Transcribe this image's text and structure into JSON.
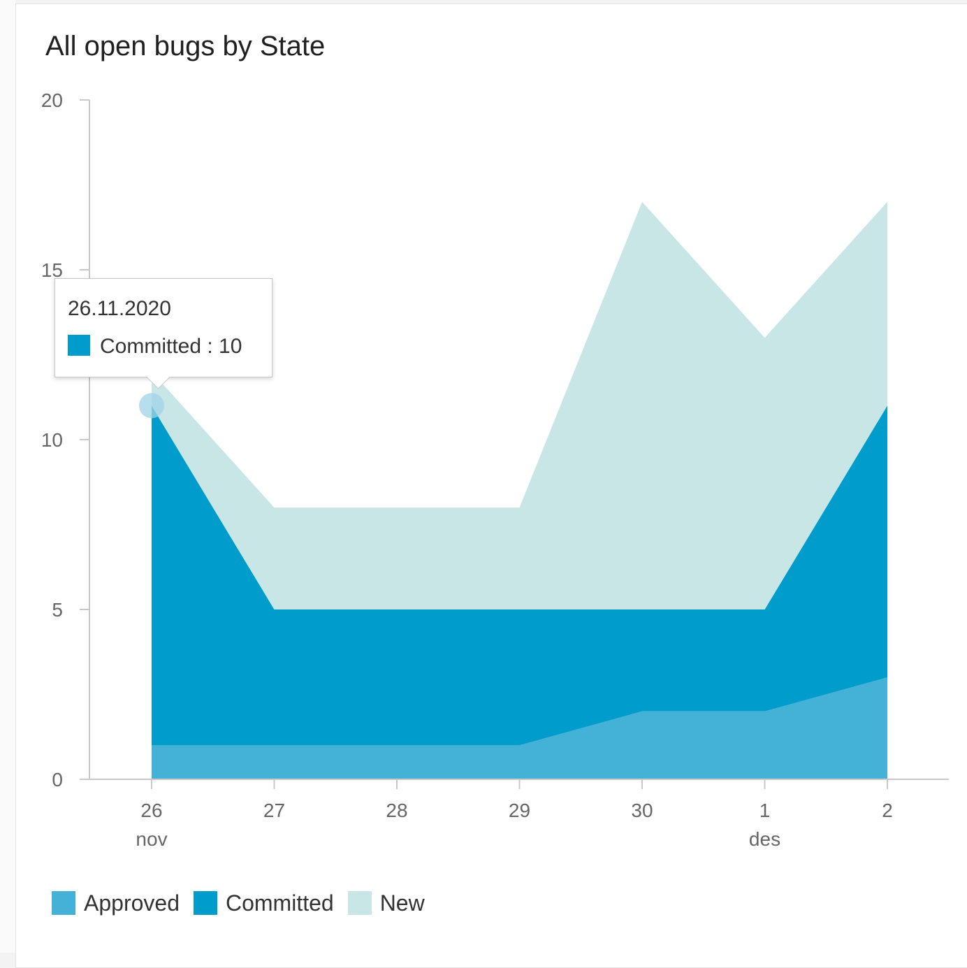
{
  "widget": {
    "title": "All open bugs by State"
  },
  "chart_data": {
    "type": "area",
    "stacked": true,
    "title": "All open bugs by State",
    "xlabel": "",
    "ylabel": "",
    "ylim": [
      0,
      20
    ],
    "yticks": [
      "0",
      "5",
      "10",
      "15",
      "20"
    ],
    "categories": [
      "26",
      "27",
      "28",
      "29",
      "30",
      "1",
      "2"
    ],
    "month_labels": [
      "nov",
      "",
      "",
      "",
      "",
      "des",
      ""
    ],
    "series": [
      {
        "name": "Approved",
        "color": "#44b1d6",
        "values": [
          1,
          1,
          1,
          1,
          2,
          2,
          3
        ]
      },
      {
        "name": "Committed",
        "color": "#009ccc",
        "values": [
          10,
          4,
          4,
          4,
          3,
          3,
          8
        ]
      },
      {
        "name": "New",
        "color": "#c9e6e6",
        "values": [
          1,
          3,
          3,
          3,
          12,
          8,
          6
        ]
      }
    ],
    "legend_position": "bottom-left",
    "grid": false
  },
  "tooltip": {
    "date": "26.11.2020",
    "series_label": "Committed : 10",
    "color": "#009ccc"
  }
}
